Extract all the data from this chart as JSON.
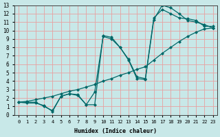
{
  "xlabel": "Humidex (Indice chaleur)",
  "bg_color": "#c8e8e8",
  "grid_color": "#e8a0a0",
  "line_color": "#006868",
  "xlim": [
    -0.5,
    23.5
  ],
  "ylim": [
    0,
    13
  ],
  "xticks": [
    0,
    1,
    2,
    3,
    4,
    5,
    6,
    7,
    8,
    9,
    10,
    11,
    12,
    13,
    14,
    15,
    16,
    17,
    18,
    19,
    20,
    21,
    22,
    23
  ],
  "yticks": [
    0,
    1,
    2,
    3,
    4,
    5,
    6,
    7,
    8,
    9,
    10,
    11,
    12,
    13
  ],
  "line1_x": [
    0,
    1,
    2,
    3,
    4,
    5,
    6,
    7,
    8,
    9,
    10,
    11,
    12,
    13,
    14,
    15,
    16,
    17,
    18,
    19,
    20,
    21,
    22,
    23
  ],
  "line1_y": [
    1.5,
    1.5,
    1.5,
    1.0,
    0.5,
    2.2,
    2.5,
    2.3,
    1.2,
    2.7,
    9.3,
    9.0,
    8.0,
    6.5,
    4.3,
    4.2,
    11.3,
    13.0,
    12.7,
    12.0,
    11.2,
    11.0,
    10.7,
    10.3
  ],
  "line2_x": [
    0,
    1,
    2,
    3,
    4,
    5,
    6,
    7,
    8,
    9,
    10,
    11,
    12,
    13,
    14,
    15,
    16,
    17,
    18,
    19,
    20,
    21,
    22,
    23
  ],
  "line2_y": [
    1.5,
    1.4,
    1.4,
    1.1,
    0.4,
    2.2,
    2.5,
    2.4,
    1.2,
    1.2,
    9.4,
    9.2,
    8.0,
    6.6,
    4.5,
    4.3,
    11.5,
    12.5,
    12.0,
    11.5,
    11.4,
    11.2,
    10.5,
    10.5
  ],
  "line3_x": [
    0,
    1,
    2,
    3,
    4,
    5,
    6,
    7,
    8,
    9,
    10,
    11,
    12,
    13,
    14,
    15,
    16,
    17,
    18,
    19,
    20,
    21,
    22,
    23
  ],
  "line3_y": [
    1.5,
    1.6,
    1.8,
    2.0,
    2.2,
    2.5,
    2.8,
    3.0,
    3.3,
    3.6,
    4.0,
    4.3,
    4.7,
    5.0,
    5.4,
    5.7,
    6.5,
    7.3,
    8.0,
    8.7,
    9.3,
    9.8,
    10.2,
    10.3
  ]
}
